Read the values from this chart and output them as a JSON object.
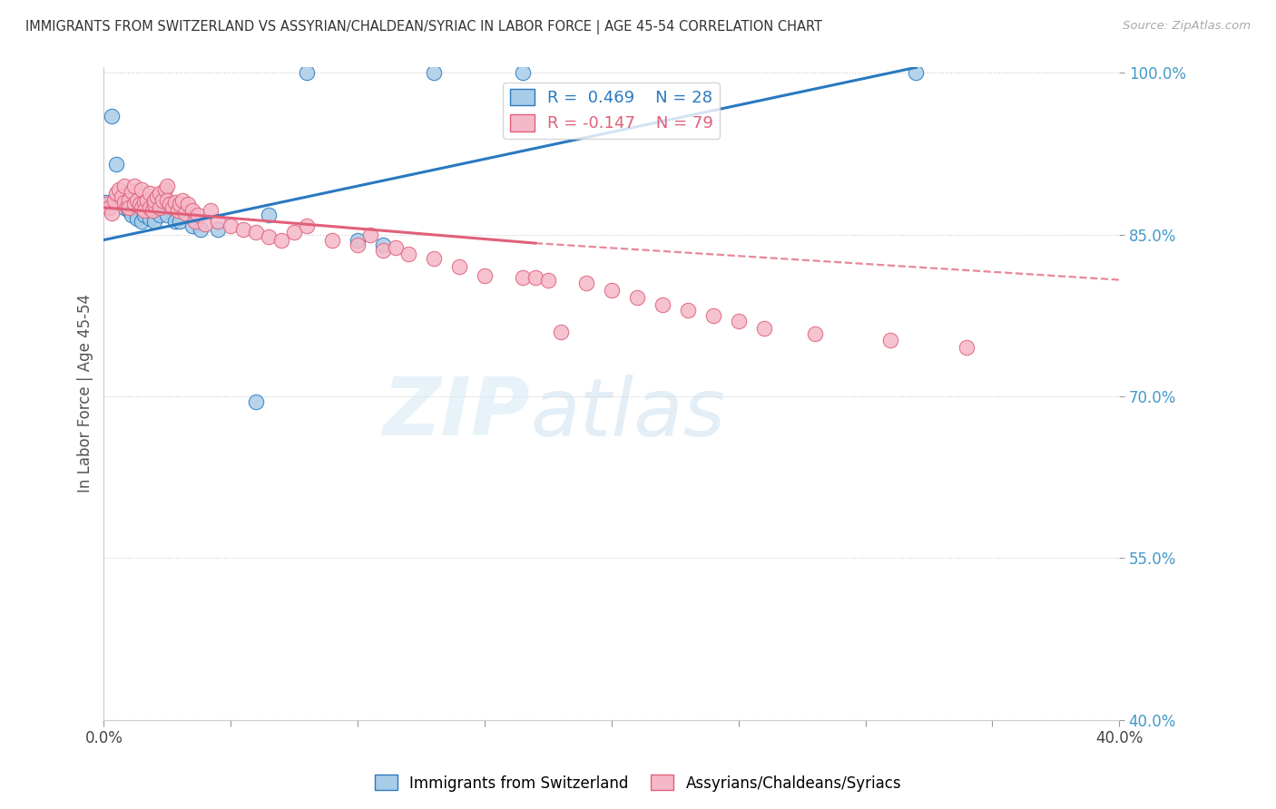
{
  "title": "IMMIGRANTS FROM SWITZERLAND VS ASSYRIAN/CHALDEAN/SYRIAC IN LABOR FORCE | AGE 45-54 CORRELATION CHART",
  "source": "Source: ZipAtlas.com",
  "ylabel": "In Labor Force | Age 45-54",
  "xlim": [
    0.0,
    0.4
  ],
  "ylim": [
    0.4,
    1.005
  ],
  "yticks": [
    1.0,
    0.85,
    0.7,
    0.55,
    0.4
  ],
  "ytick_labels": [
    "100.0%",
    "85.0%",
    "70.0%",
    "55.0%",
    "40.0%"
  ],
  "xticks": [
    0.0,
    0.05,
    0.1,
    0.15,
    0.2,
    0.25,
    0.3,
    0.35,
    0.4
  ],
  "xtick_labels": [
    "0.0%",
    "",
    "",
    "",
    "",
    "",
    "",
    "",
    "40.0%"
  ],
  "watermark_zip": "ZIP",
  "watermark_atlas": "atlas",
  "blue_color": "#a8cce8",
  "pink_color": "#f5b8c8",
  "blue_line_color": "#2979c0",
  "pink_line_color": "#e0607a",
  "tick_color": "#4499cc",
  "title_color": "#333333",
  "blue_line_x0": 0.0,
  "blue_line_y0": 0.845,
  "blue_line_x1": 0.32,
  "blue_line_y1": 1.005,
  "pink_line_x0": 0.0,
  "pink_line_y0": 0.875,
  "pink_line_x1_solid": 0.17,
  "pink_line_y1_solid": 0.842,
  "pink_line_x1_dash": 0.4,
  "pink_line_y1_dash": 0.808,
  "blue_scatter_x": [
    0.001,
    0.003,
    0.005,
    0.007,
    0.008,
    0.009,
    0.01,
    0.011,
    0.013,
    0.015,
    0.016,
    0.018,
    0.02,
    0.022,
    0.025,
    0.028,
    0.03,
    0.035,
    0.038,
    0.045,
    0.06,
    0.065,
    0.08,
    0.1,
    0.11,
    0.13,
    0.165,
    0.32
  ],
  "blue_scatter_y": [
    0.88,
    0.96,
    0.915,
    0.885,
    0.875,
    0.878,
    0.872,
    0.868,
    0.865,
    0.862,
    0.868,
    0.865,
    0.862,
    0.868,
    0.868,
    0.862,
    0.862,
    0.858,
    0.855,
    0.855,
    0.695,
    0.868,
    1.0,
    0.845,
    0.84,
    1.0,
    1.0,
    1.0
  ],
  "pink_scatter_x": [
    0.001,
    0.002,
    0.003,
    0.004,
    0.005,
    0.006,
    0.007,
    0.008,
    0.008,
    0.009,
    0.01,
    0.01,
    0.011,
    0.012,
    0.012,
    0.013,
    0.014,
    0.015,
    0.015,
    0.016,
    0.016,
    0.017,
    0.018,
    0.018,
    0.019,
    0.02,
    0.02,
    0.021,
    0.022,
    0.022,
    0.023,
    0.024,
    0.025,
    0.025,
    0.026,
    0.027,
    0.028,
    0.029,
    0.03,
    0.031,
    0.032,
    0.033,
    0.035,
    0.036,
    0.037,
    0.04,
    0.042,
    0.045,
    0.05,
    0.055,
    0.06,
    0.065,
    0.07,
    0.075,
    0.08,
    0.09,
    0.1,
    0.105,
    0.11,
    0.115,
    0.12,
    0.13,
    0.14,
    0.15,
    0.165,
    0.17,
    0.175,
    0.18,
    0.19,
    0.2,
    0.21,
    0.22,
    0.23,
    0.24,
    0.25,
    0.26,
    0.28,
    0.31,
    0.34
  ],
  "pink_scatter_y": [
    0.878,
    0.875,
    0.87,
    0.882,
    0.888,
    0.892,
    0.885,
    0.88,
    0.895,
    0.876,
    0.882,
    0.875,
    0.89,
    0.895,
    0.878,
    0.882,
    0.878,
    0.892,
    0.875,
    0.88,
    0.872,
    0.882,
    0.888,
    0.875,
    0.872,
    0.878,
    0.882,
    0.885,
    0.888,
    0.875,
    0.882,
    0.892,
    0.895,
    0.882,
    0.878,
    0.875,
    0.88,
    0.872,
    0.878,
    0.882,
    0.87,
    0.878,
    0.872,
    0.862,
    0.868,
    0.86,
    0.872,
    0.862,
    0.858,
    0.855,
    0.852,
    0.848,
    0.845,
    0.852,
    0.858,
    0.845,
    0.84,
    0.85,
    0.835,
    0.838,
    0.832,
    0.828,
    0.82,
    0.812,
    0.81,
    0.81,
    0.808,
    0.76,
    0.805,
    0.798,
    0.792,
    0.785,
    0.78,
    0.775,
    0.77,
    0.763,
    0.758,
    0.752,
    0.745
  ]
}
